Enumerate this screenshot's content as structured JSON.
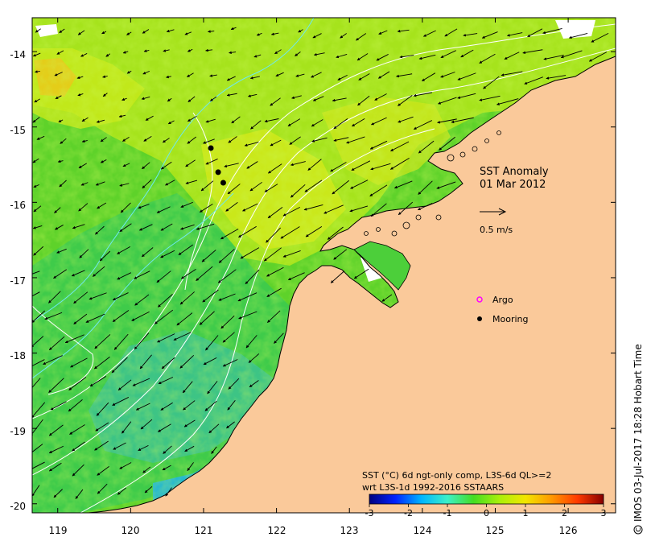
{
  "map": {
    "title": "SST Anomaly",
    "date": "01 Mar 2012",
    "lon_range": [
      118.65,
      126.65
    ],
    "lat_range": [
      -20.12,
      -13.55
    ],
    "lon_ticks": [
      119,
      120,
      121,
      122,
      123,
      124,
      125,
      126
    ],
    "lat_ticks": [
      -14,
      -15,
      -16,
      -17,
      -18,
      -19,
      -20
    ],
    "lon_tick_labels": [
      "119",
      "120",
      "121",
      "122",
      "123",
      "124",
      "125",
      "126"
    ],
    "lat_tick_labels": [
      "-14",
      "-15",
      "-16",
      "-17",
      "-18",
      "-19",
      "-20"
    ],
    "land_color": "#fac99a",
    "current_scale": {
      "label": "0.5 m/s",
      "value_ms": 0.5
    },
    "legend": {
      "items": [
        {
          "label": "Argo",
          "color": "#ff00ff",
          "symbol": "ring"
        },
        {
          "label": "Mooring",
          "color": "#000000",
          "symbol": "dot"
        }
      ]
    },
    "moorings": [
      {
        "lon": 121.1,
        "lat": -15.28
      },
      {
        "lon": 121.2,
        "lat": -15.6
      },
      {
        "lon": 121.27,
        "lat": -15.74
      }
    ]
  },
  "colorbar": {
    "line1": "SST (°C) 6d ngt-only comp, L3S-6d QL>=2",
    "line2": "wrt L3S-1d 1992-2016 SSTAARS",
    "range": [
      -3,
      3
    ],
    "tick_labels": [
      "-3",
      "-2",
      "-1",
      "0",
      "1",
      "2",
      "3"
    ],
    "stops": [
      "#00007f",
      "#0022ff",
      "#00b5ff",
      "#3cf0c8",
      "#44dd22",
      "#aaf00a",
      "#f2e600",
      "#ff9900",
      "#ff3a00",
      "#870000"
    ]
  },
  "credit": "IMOS 03-Jul-2017 18:28 Hobart Time"
}
